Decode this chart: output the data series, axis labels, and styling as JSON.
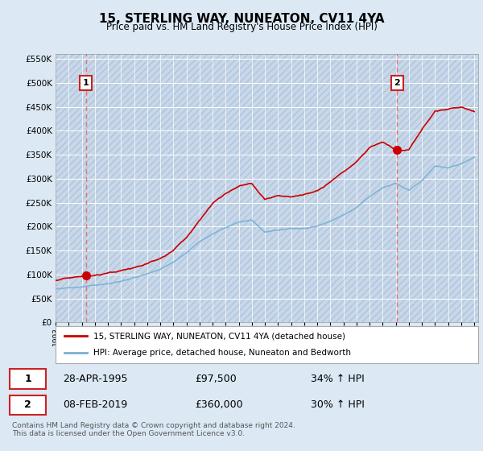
{
  "title": "15, STERLING WAY, NUNEATON, CV11 4YA",
  "subtitle": "Price paid vs. HM Land Registry's House Price Index (HPI)",
  "bg_color": "#dce9f5",
  "sale1_year": 1995.32,
  "sale1_price": 97500,
  "sale2_year": 2019.11,
  "sale2_price": 360000,
  "line_red_color": "#cc0000",
  "line_blue_color": "#7ab0d4",
  "dashed_color": "#e87070",
  "hatch_facecolor": "#c8d8ea",
  "legend_label1": "15, STERLING WAY, NUNEATON, CV11 4YA (detached house)",
  "legend_label2": "HPI: Average price, detached house, Nuneaton and Bedworth",
  "table_row1": [
    "1",
    "28-APR-1995",
    "£97,500",
    "34% ↑ HPI"
  ],
  "table_row2": [
    "2",
    "08-FEB-2019",
    "£360,000",
    "30% ↑ HPI"
  ],
  "footnote": "Contains HM Land Registry data © Crown copyright and database right 2024.\nThis data is licensed under the Open Government Licence v3.0.",
  "hpi_knots_x": [
    1993,
    1994,
    1995,
    1996,
    1997,
    1998,
    1999,
    2000,
    2001,
    2002,
    2003,
    2004,
    2005,
    2006,
    2007,
    2008,
    2009,
    2010,
    2011,
    2012,
    2013,
    2014,
    2015,
    2016,
    2017,
    2018,
    2019,
    2020,
    2021,
    2022,
    2023,
    2024,
    2025
  ],
  "hpi_knots_y": [
    70000,
    72000,
    74000,
    77000,
    80000,
    85000,
    92000,
    100000,
    110000,
    125000,
    145000,
    168000,
    185000,
    198000,
    210000,
    215000,
    190000,
    195000,
    198000,
    197000,
    202000,
    212000,
    225000,
    240000,
    262000,
    280000,
    290000,
    275000,
    295000,
    325000,
    320000,
    330000,
    345000
  ],
  "red_knots_x": [
    1993,
    1994,
    1995,
    1995.32,
    1996,
    1997,
    1998,
    1999,
    2000,
    2001,
    2002,
    2003,
    2004,
    2005,
    2006,
    2007,
    2008,
    2009,
    2010,
    2011,
    2012,
    2013,
    2014,
    2015,
    2016,
    2017,
    2018,
    2019.11,
    2020,
    2021,
    2022,
    2023,
    2024,
    2025
  ],
  "red_knots_y": [
    88000,
    94000,
    97000,
    97500,
    100000,
    105000,
    110000,
    118000,
    128000,
    140000,
    158000,
    185000,
    220000,
    255000,
    275000,
    290000,
    295000,
    262000,
    270000,
    268000,
    272000,
    280000,
    298000,
    318000,
    340000,
    370000,
    380000,
    360000,
    360000,
    400000,
    440000,
    445000,
    450000,
    440000
  ]
}
